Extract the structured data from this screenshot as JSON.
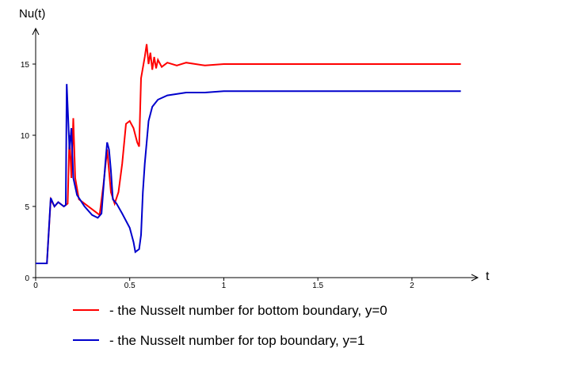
{
  "chart_data": {
    "type": "line",
    "y_label": "Nu(t)",
    "x_label": "t",
    "xlim": [
      0,
      2.35
    ],
    "ylim": [
      0,
      17.5
    ],
    "xticks": [
      0,
      0.5,
      1,
      1.5,
      2
    ],
    "yticks": [
      0,
      5,
      10,
      15
    ],
    "series": [
      {
        "name": "- the Nusselt number for bottom boundary, y=0",
        "color": "#ff0000",
        "x": [
          0,
          0.06,
          0.08,
          0.1,
          0.12,
          0.15,
          0.17,
          0.18,
          0.19,
          0.2,
          0.21,
          0.23,
          0.3,
          0.34,
          0.36,
          0.38,
          0.4,
          0.42,
          0.44,
          0.46,
          0.48,
          0.5,
          0.52,
          0.54,
          0.55,
          0.56,
          0.58,
          0.59,
          0.6,
          0.61,
          0.62,
          0.63,
          0.64,
          0.65,
          0.67,
          0.7,
          0.75,
          0.8,
          0.9,
          1.0,
          1.2,
          1.5,
          1.8,
          2.0,
          2.26
        ],
        "values": [
          1,
          1,
          5.5,
          5,
          5.3,
          5,
          5.2,
          10,
          7,
          11.2,
          7,
          5.5,
          4.8,
          4.4,
          6.5,
          9,
          6,
          5.2,
          6,
          8,
          10.8,
          11,
          10.5,
          9.5,
          9.2,
          14,
          15.5,
          16.4,
          15,
          15.8,
          14.6,
          15.5,
          14.7,
          15.3,
          14.8,
          15.1,
          14.9,
          15.1,
          14.9,
          15,
          15,
          15,
          15,
          15,
          15
        ]
      },
      {
        "name": "- the Nusselt number for top boundary, y=1",
        "color": "#0000cc",
        "x": [
          0,
          0.06,
          0.08,
          0.1,
          0.12,
          0.15,
          0.16,
          0.165,
          0.17,
          0.18,
          0.19,
          0.2,
          0.22,
          0.26,
          0.3,
          0.33,
          0.35,
          0.37,
          0.38,
          0.39,
          0.4,
          0.41,
          0.43,
          0.46,
          0.5,
          0.52,
          0.53,
          0.55,
          0.56,
          0.57,
          0.58,
          0.6,
          0.62,
          0.65,
          0.7,
          0.8,
          0.9,
          1.0,
          1.5,
          2.0,
          2.26
        ],
        "values": [
          1,
          1,
          5.6,
          5,
          5.3,
          5,
          5.1,
          13.6,
          12,
          9,
          10.5,
          7,
          5.8,
          5,
          4.4,
          4.2,
          4.5,
          8,
          9.5,
          9,
          7.5,
          5.5,
          5.2,
          4.5,
          3.5,
          2.5,
          1.8,
          2,
          3,
          6,
          8,
          11,
          12,
          12.5,
          12.8,
          13,
          13,
          13.1,
          13.1,
          13.1,
          13.1
        ]
      }
    ]
  }
}
